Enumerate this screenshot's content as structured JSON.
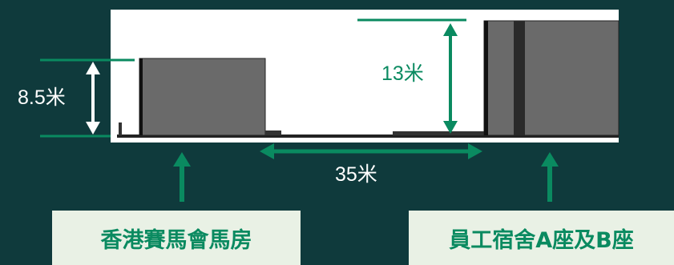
{
  "dimensions": {
    "stables_height": "8.5米",
    "quarters_height": "13米",
    "separation": "35米"
  },
  "buildings": {
    "stables_name": "香港賽馬會馬房",
    "quarters_name": "員工宿舍A座及B座"
  },
  "colors": {
    "background": "#0f3a3c",
    "accent_green": "#0a8a60",
    "label_box": "#e9f1e5",
    "building_gray": "#6a6a6a"
  }
}
